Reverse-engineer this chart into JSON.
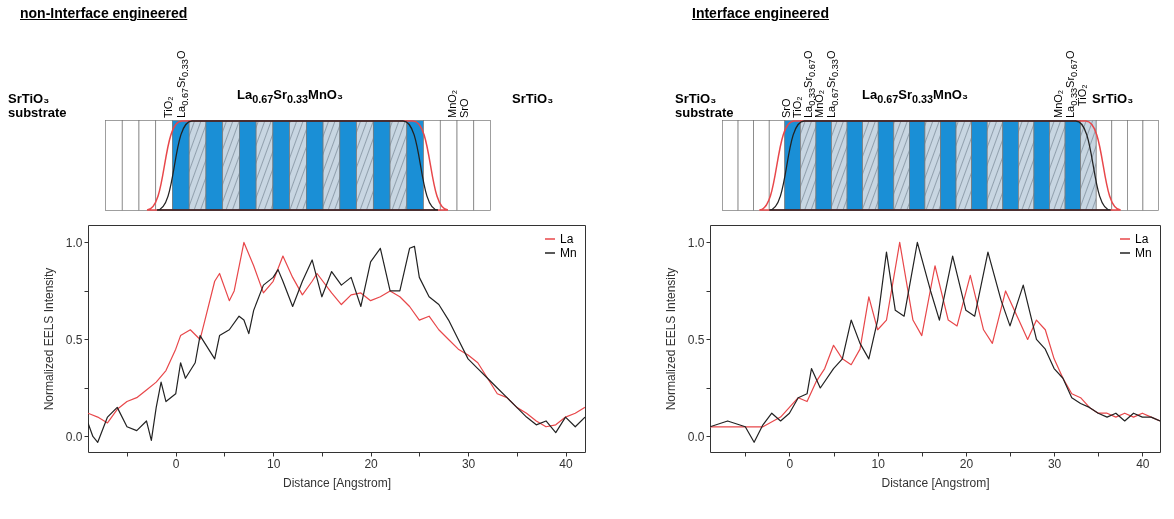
{
  "chart_data": [
    {
      "type": "line",
      "title": "non-Interface engineered",
      "xlabel": "Distance [Angstrom]",
      "ylabel": "Normalized EELS Intensity",
      "xlim": [
        -9,
        42
      ],
      "ylim": [
        -0.08,
        1.09
      ],
      "xticks": [
        {
          "value": -5,
          "label": null
        },
        0,
        {
          "value": 5,
          "label": null
        },
        10,
        {
          "value": 15,
          "label": null
        },
        20,
        {
          "value": 25,
          "label": null
        },
        30,
        {
          "value": 35,
          "label": null
        },
        40
      ],
      "yticks": [
        {
          "value": 0,
          "label": "0.0"
        },
        {
          "value": 0.25,
          "label": null
        },
        0.5,
        {
          "value": 0.75,
          "label": null
        },
        {
          "value": 1,
          "label": "1.0"
        }
      ],
      "legend": "top right",
      "grid": false,
      "marker": "none",
      "annotations": [
        "SrTiO₃ substrate",
        "TiO₂",
        "La$_{0.67}$Sr$_{0.33}$O",
        "La$_{0.67}$Sr$_{0.33}$MnO₃",
        "MnO₂",
        "SrO",
        "SrTiO₃"
      ],
      "series": [
        {
          "name": "La",
          "color": "#e8474a",
          "x": [
            -9,
            -8,
            -7,
            -6,
            -5,
            -4,
            -3,
            -2,
            -1,
            0,
            0.5,
            1.5,
            2.5,
            3,
            4,
            4.5,
            5.5,
            6,
            7,
            8,
            9,
            10,
            11,
            12,
            13,
            14,
            14.5,
            16,
            17,
            18,
            19,
            20,
            21,
            22,
            23,
            24,
            25,
            26,
            27,
            28,
            29,
            30,
            31,
            32,
            33,
            34,
            35,
            36,
            37,
            38,
            39,
            40,
            41,
            42
          ],
          "values": [
            0.12,
            0.1,
            0.07,
            0.14,
            0.18,
            0.2,
            0.24,
            0.28,
            0.34,
            0.45,
            0.52,
            0.55,
            0.5,
            0.6,
            0.8,
            0.84,
            0.7,
            0.75,
            1.0,
            0.88,
            0.74,
            0.8,
            0.93,
            0.82,
            0.73,
            0.8,
            0.84,
            0.74,
            0.68,
            0.73,
            0.74,
            0.7,
            0.72,
            0.75,
            0.72,
            0.67,
            0.6,
            0.62,
            0.55,
            0.5,
            0.45,
            0.42,
            0.38,
            0.3,
            0.22,
            0.2,
            0.15,
            0.12,
            0.08,
            0.05,
            0.06,
            0.1,
            0.12,
            0.15
          ]
        },
        {
          "name": "Mn",
          "color": "#222222",
          "x": [
            -9,
            -8.5,
            -8,
            -7,
            -6,
            -5,
            -4,
            -3,
            -2.5,
            -2,
            -1.5,
            -1,
            0,
            0.5,
            1,
            2,
            2.5,
            3,
            4,
            4.5,
            5.5,
            6.5,
            7,
            7.5,
            8,
            9,
            10,
            10.5,
            11,
            12,
            13,
            14,
            15,
            16,
            17,
            18,
            19,
            20,
            21,
            22,
            23,
            24,
            24.5,
            25,
            26,
            27,
            28,
            29,
            30,
            31,
            32,
            33,
            34,
            35,
            36,
            37,
            38,
            39,
            40,
            41,
            42
          ],
          "values": [
            0.07,
            0.0,
            -0.03,
            0.1,
            0.15,
            0.05,
            0.03,
            0.08,
            -0.02,
            0.15,
            0.28,
            0.18,
            0.22,
            0.38,
            0.3,
            0.38,
            0.52,
            0.48,
            0.4,
            0.52,
            0.55,
            0.62,
            0.6,
            0.53,
            0.65,
            0.78,
            0.82,
            0.86,
            0.8,
            0.67,
            0.8,
            0.91,
            0.72,
            0.85,
            0.78,
            0.82,
            0.67,
            0.9,
            0.97,
            0.75,
            0.75,
            0.97,
            0.98,
            0.82,
            0.72,
            0.68,
            0.6,
            0.5,
            0.4,
            0.35,
            0.3,
            0.25,
            0.2,
            0.15,
            0.1,
            0.06,
            0.08,
            0.02,
            0.1,
            0.05,
            0.1
          ]
        }
      ]
    },
    {
      "type": "line",
      "title": "Interface engineered",
      "xlabel": "Distance [Angstrom]",
      "ylabel": "Normalized EELS Intensity",
      "xlim": [
        -9,
        42
      ],
      "ylim": [
        -0.08,
        1.09
      ],
      "xticks": [
        {
          "value": -5,
          "label": null
        },
        0,
        {
          "value": 5,
          "label": null
        },
        10,
        {
          "value": 15,
          "label": null
        },
        20,
        {
          "value": 25,
          "label": null
        },
        30,
        {
          "value": 35,
          "label": null
        },
        40
      ],
      "yticks": [
        {
          "value": 0,
          "label": "0.0"
        },
        {
          "value": 0.25,
          "label": null
        },
        0.5,
        {
          "value": 0.75,
          "label": null
        },
        {
          "value": 1,
          "label": "1.0"
        }
      ],
      "legend": "top right",
      "grid": false,
      "marker": "none",
      "annotations": [
        "SrTiO₃ substrate",
        "SrO",
        "TiO₂",
        "La$_{0.33}$Sr$_{0.67}$O",
        "MnO₂",
        "La$_{0.67}$Sr$_{0.33}$O",
        "La$_{0.67}$Sr$_{0.33}$MnO₃",
        "MnO₂",
        "La$_{0.33}$Sr$_{0.67}$O",
        "TiO₂",
        "SrTiO₃"
      ],
      "series": [
        {
          "name": "La",
          "color": "#e8474a",
          "x": [
            -9,
            -6,
            -3,
            -1,
            0,
            1,
            2,
            3,
            4,
            5,
            6,
            7,
            8,
            9,
            10,
            11,
            12.5,
            14,
            15,
            16.5,
            18,
            19,
            20.5,
            22,
            23,
            24.5,
            26,
            27,
            28,
            29,
            30,
            31,
            32,
            33,
            34,
            35,
            36,
            37,
            38,
            39,
            40,
            41,
            42
          ],
          "values": [
            0.05,
            0.05,
            0.05,
            0.1,
            0.15,
            0.2,
            0.18,
            0.28,
            0.35,
            0.47,
            0.4,
            0.37,
            0.45,
            0.72,
            0.55,
            0.6,
            1.0,
            0.6,
            0.52,
            0.88,
            0.6,
            0.57,
            0.83,
            0.55,
            0.48,
            0.75,
            0.6,
            0.5,
            0.6,
            0.55,
            0.4,
            0.3,
            0.22,
            0.2,
            0.15,
            0.12,
            0.12,
            0.1,
            0.12,
            0.1,
            0.12,
            0.1,
            0.08
          ]
        },
        {
          "name": "Mn",
          "color": "#222222",
          "x": [
            -9,
            -7,
            -5,
            -4,
            -3,
            -2,
            -1,
            0,
            1,
            2,
            2.5,
            3.5,
            5,
            6,
            7,
            8,
            9,
            10,
            11,
            12,
            13,
            14.5,
            16,
            17,
            18.5,
            20,
            21,
            22.5,
            24,
            25,
            26.5,
            28,
            29,
            30,
            31,
            32,
            33,
            34,
            35,
            36,
            37,
            38,
            39,
            40,
            41,
            42
          ],
          "values": [
            0.05,
            0.08,
            0.05,
            -0.03,
            0.06,
            0.12,
            0.08,
            0.12,
            0.2,
            0.22,
            0.35,
            0.25,
            0.35,
            0.4,
            0.6,
            0.48,
            0.4,
            0.6,
            0.95,
            0.65,
            0.62,
            1.0,
            0.75,
            0.6,
            0.93,
            0.65,
            0.62,
            0.95,
            0.7,
            0.57,
            0.78,
            0.5,
            0.45,
            0.35,
            0.3,
            0.2,
            0.17,
            0.15,
            0.12,
            0.1,
            0.12,
            0.08,
            0.12,
            0.1,
            0.1,
            0.08
          ]
        }
      ]
    }
  ]
}
